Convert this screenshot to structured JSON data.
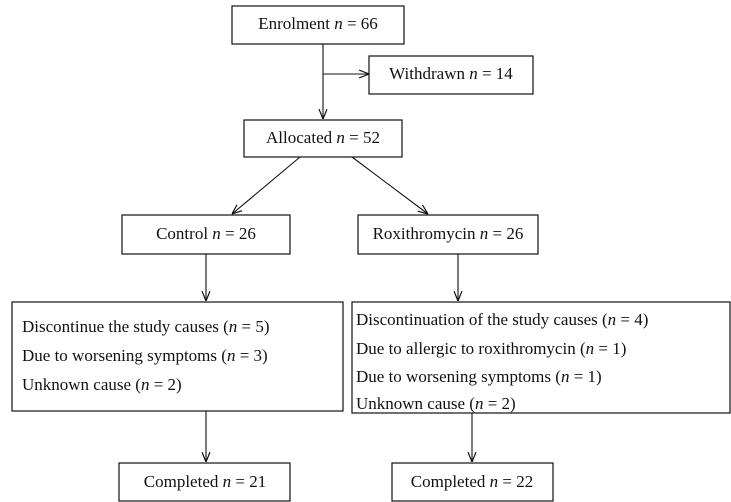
{
  "nodes": [
    {
      "lines": [
        [
          "Enrolment ",
          "n",
          " = 66"
        ]
      ]
    },
    {
      "lines": [
        [
          "Withdrawn ",
          "n",
          " = 14"
        ]
      ]
    },
    {
      "lines": [
        [
          "Allocated ",
          "n",
          " = 52"
        ]
      ]
    },
    {
      "lines": [
        [
          "Control ",
          "n",
          " = 26"
        ]
      ]
    },
    {
      "lines": [
        [
          "Roxithromycin ",
          "n",
          " = 26"
        ]
      ]
    },
    {
      "lines": [
        [
          "Discontinue the study causes (",
          "n",
          " = 5)"
        ],
        [
          "Due to worsening symptoms (",
          "n",
          " = 3)"
        ],
        [
          "Unknown cause (",
          "n",
          " = 2)"
        ]
      ]
    },
    {
      "lines": [
        [
          "Discontinuation of the study causes (",
          "n",
          " = 4)"
        ],
        [
          "Due to allergic to roxithromycin (",
          "n",
          " = 1)"
        ],
        [
          "Due to worsening symptoms (",
          "n",
          " = 1)"
        ],
        [
          "Unknown cause (",
          "n",
          " = 2)"
        ]
      ]
    },
    {
      "lines": [
        [
          "Completed ",
          "n",
          " = 21"
        ]
      ]
    },
    {
      "lines": [
        [
          "Completed ",
          "n",
          " = 22"
        ]
      ]
    }
  ]
}
